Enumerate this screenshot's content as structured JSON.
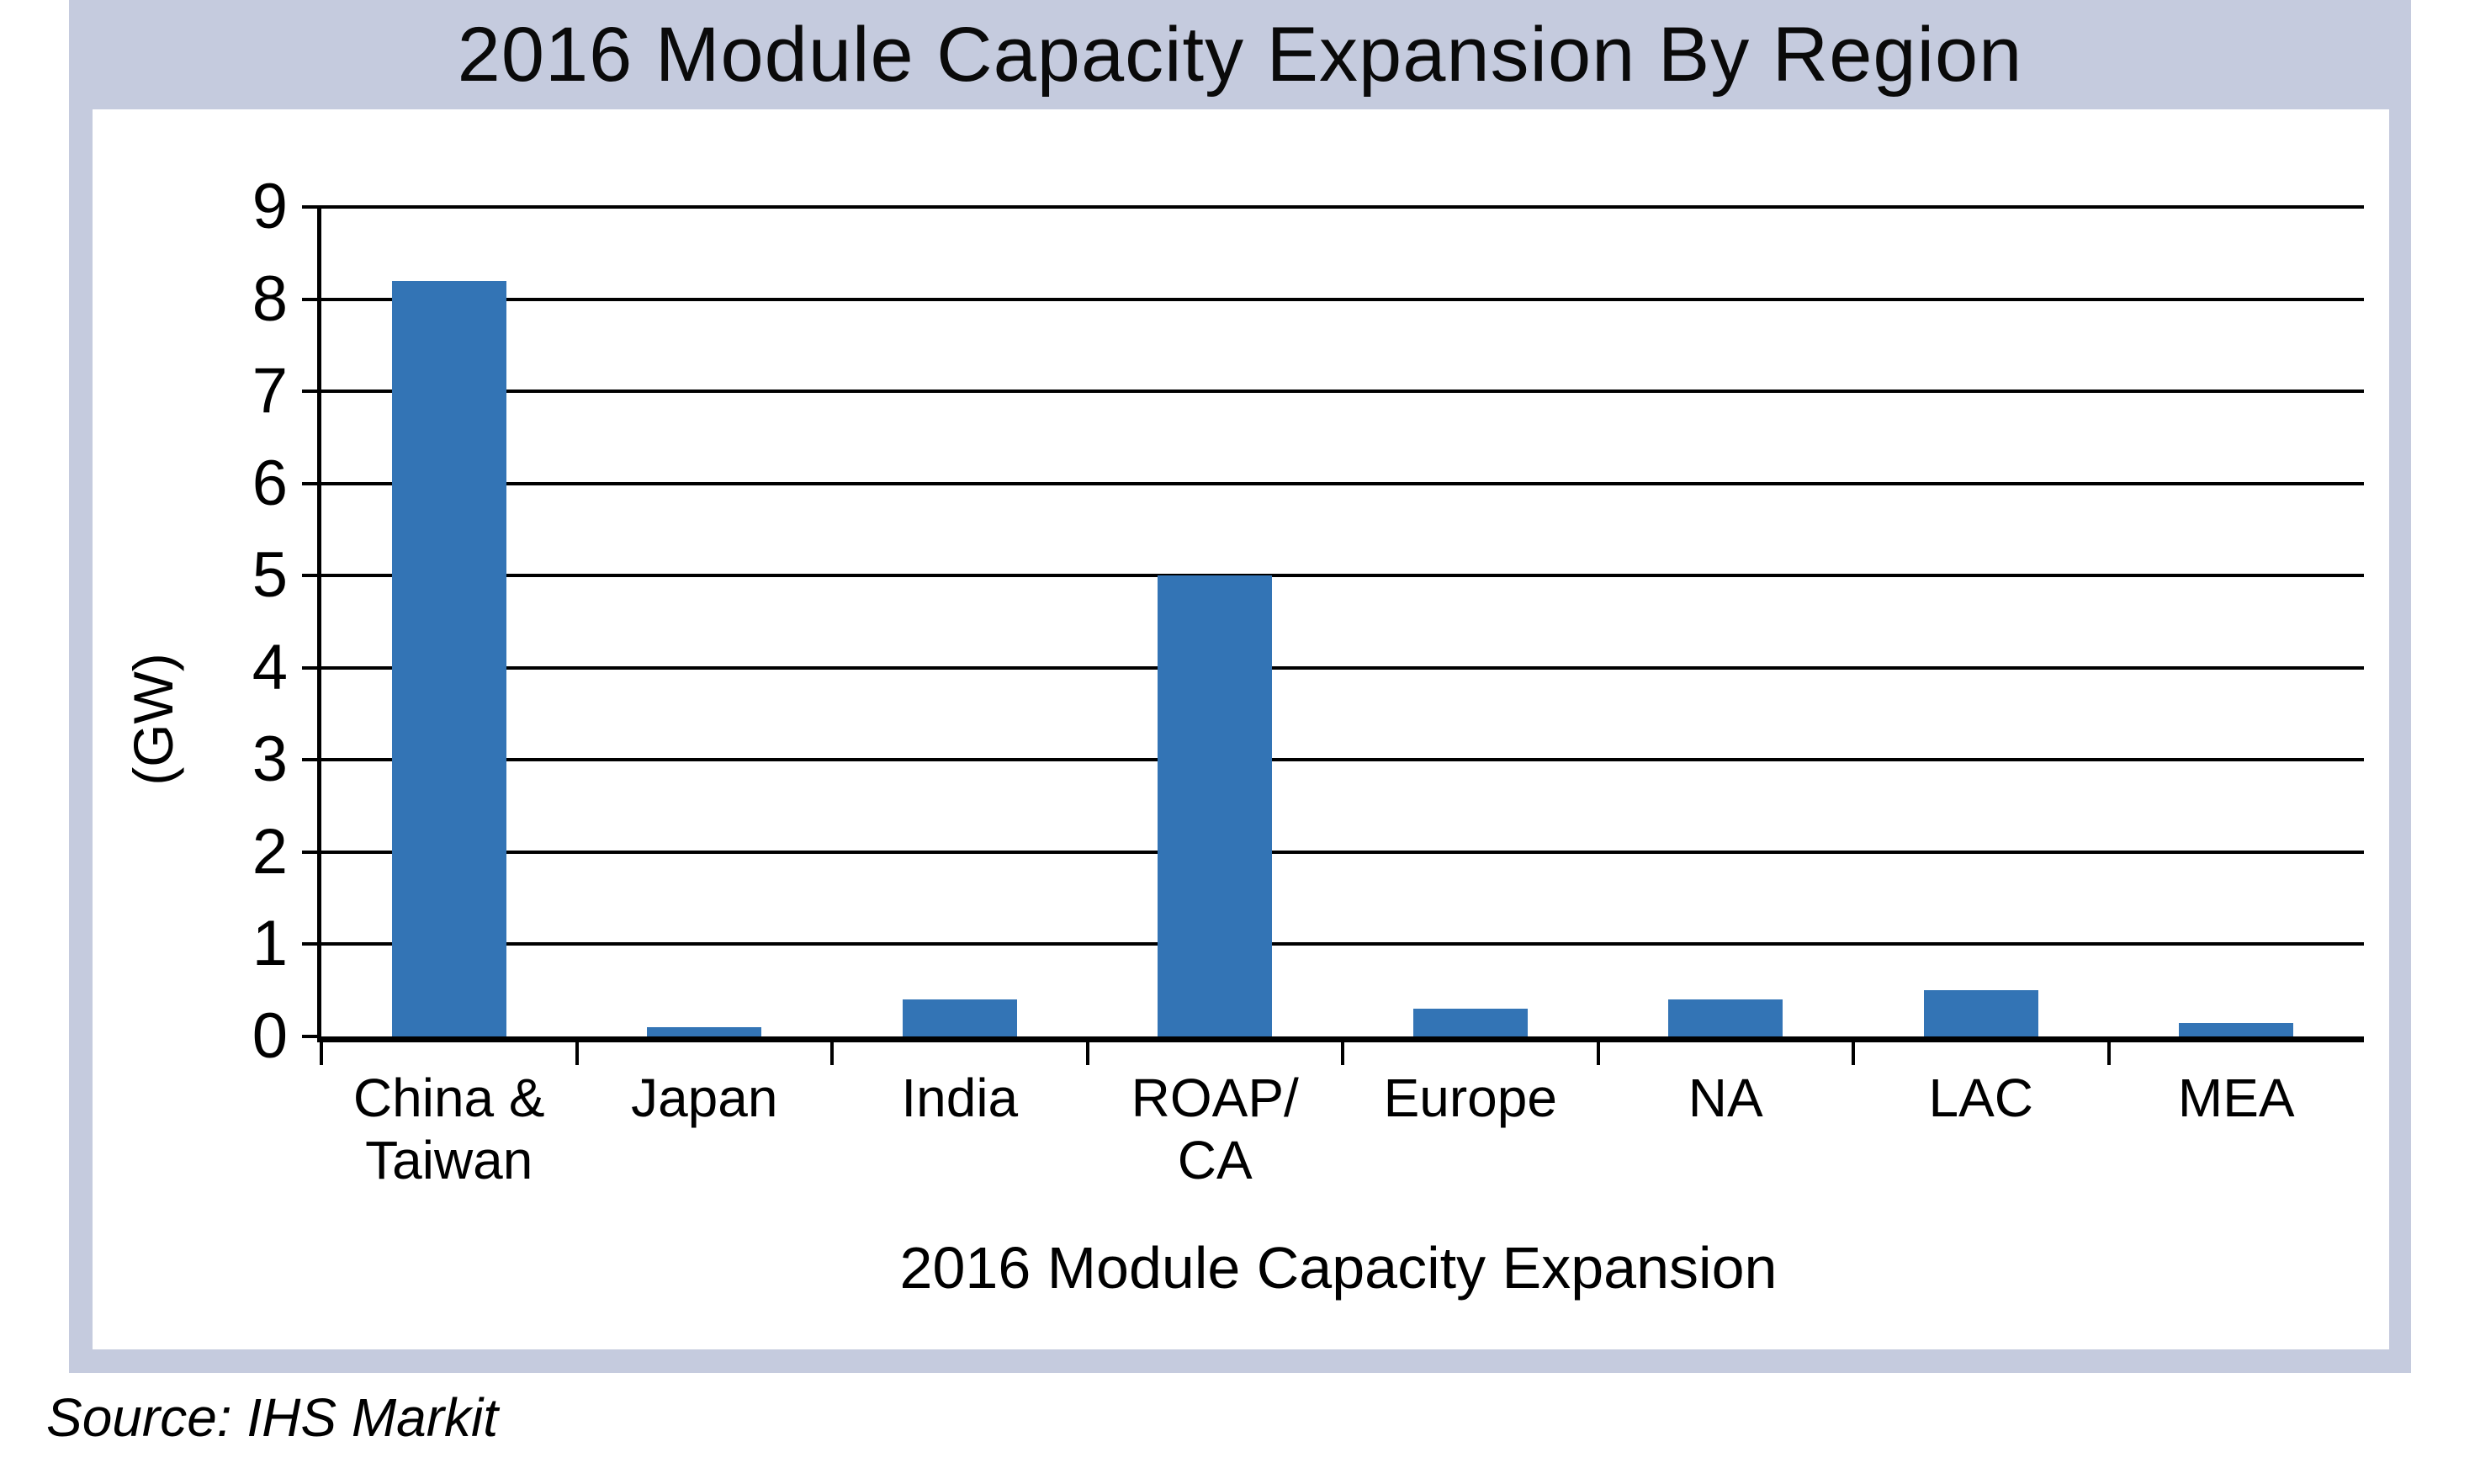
{
  "header": {
    "title": "2016 Module Capacity Expansion By Region"
  },
  "source_note": "Source: IHS Markit",
  "colors": {
    "bar": "#3374b5",
    "frame": "#c5cbde",
    "axis": "#000000",
    "plot_background": "#ffffff"
  },
  "chart_data": {
    "type": "bar",
    "title": "2016 Module Capacity Expansion By Region",
    "categories": [
      "China &\nTaiwan",
      "Japan",
      "India",
      "ROAP/\nCA",
      "Europe",
      "NA",
      "LAC",
      "MEA"
    ],
    "values": [
      8.2,
      0.1,
      0.4,
      5.0,
      0.3,
      0.4,
      0.5,
      0.15
    ],
    "xlabel": "2016 Module Capacity Expansion",
    "ylabel": "(GW)",
    "ylim": [
      0,
      9
    ],
    "yticks": [
      0,
      1,
      2,
      3,
      4,
      5,
      6,
      7,
      8,
      9
    ],
    "grid": "horizontal",
    "legend": false
  }
}
